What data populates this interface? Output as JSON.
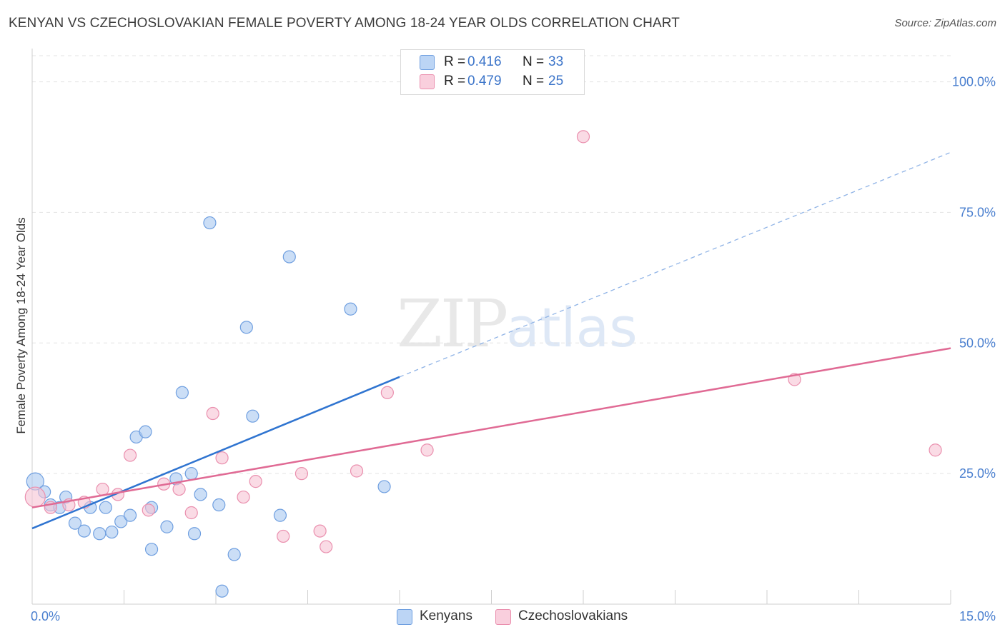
{
  "header": {
    "title": "KENYAN VS CZECHOSLOVAKIAN FEMALE POVERTY AMONG 18-24 YEAR OLDS CORRELATION CHART",
    "source": "Source: ZipAtlas.com"
  },
  "watermark": {
    "zip": "ZIP",
    "atlas": "atlas"
  },
  "legend": {
    "rows": [
      {
        "r_label": "R = ",
        "r_value": "0.416",
        "n_label": "N = ",
        "n_value": "33"
      },
      {
        "r_label": "R = ",
        "r_value": "0.479",
        "n_label": "N = ",
        "n_value": "25"
      }
    ]
  },
  "chart_data": {
    "type": "scatter",
    "title": "KENYAN VS CZECHOSLOVAKIAN FEMALE POVERTY AMONG 18-24 YEAR OLDS CORRELATION CHART",
    "xlabel": "",
    "ylabel": "Female Poverty Among 18-24 Year Olds",
    "xlim": [
      0,
      15
    ],
    "ylim": [
      0,
      105
    ],
    "x_tick_labels": [
      "0.0%",
      "15.0%"
    ],
    "y_tick_labels": [
      "25.0%",
      "50.0%",
      "75.0%",
      "100.0%"
    ],
    "y_ticks": [
      25,
      50,
      75,
      100
    ],
    "grid": true,
    "legend_position": "top-center",
    "series": [
      {
        "name": "Kenyans",
        "color": "#a9c8f0",
        "edge": "#6f9fe0",
        "line_color": "#2f74d0",
        "points": [
          [
            0.05,
            23.5
          ],
          [
            0.2,
            21.5
          ],
          [
            0.3,
            19
          ],
          [
            0.45,
            18.5
          ],
          [
            0.55,
            20.5
          ],
          [
            0.7,
            15.5
          ],
          [
            0.85,
            14
          ],
          [
            0.95,
            18.5
          ],
          [
            1.1,
            13.5
          ],
          [
            1.2,
            18.5
          ],
          [
            1.3,
            13.8
          ],
          [
            1.45,
            15.8
          ],
          [
            1.6,
            17
          ],
          [
            1.7,
            32
          ],
          [
            1.85,
            33
          ],
          [
            1.95,
            18.5
          ],
          [
            1.95,
            10.5
          ],
          [
            2.2,
            14.8
          ],
          [
            2.35,
            24
          ],
          [
            2.45,
            40.5
          ],
          [
            2.6,
            25
          ],
          [
            2.65,
            13.5
          ],
          [
            2.75,
            21
          ],
          [
            2.9,
            73
          ],
          [
            3.05,
            19
          ],
          [
            3.1,
            2.5
          ],
          [
            3.3,
            9.5
          ],
          [
            3.5,
            53
          ],
          [
            3.6,
            36
          ],
          [
            4.05,
            17
          ],
          [
            4.2,
            66.5
          ],
          [
            5.2,
            56.5
          ],
          [
            5.75,
            22.5
          ]
        ],
        "trend": {
          "x0": 0,
          "y0": 14.5,
          "x1": 6.0,
          "y1": 43.5,
          "x_dash_end": 15,
          "y_dash_end": 86.5
        }
      },
      {
        "name": "Czechoslovakians",
        "color": "#f7c3d4",
        "edge": "#ea8fae",
        "line_color": "#e06a94",
        "points": [
          [
            0.05,
            20.5
          ],
          [
            0.3,
            18.5
          ],
          [
            0.6,
            19
          ],
          [
            0.85,
            19.5
          ],
          [
            1.15,
            22
          ],
          [
            1.4,
            21
          ],
          [
            1.6,
            28.5
          ],
          [
            1.9,
            18
          ],
          [
            2.15,
            23
          ],
          [
            2.4,
            22
          ],
          [
            2.6,
            17.5
          ],
          [
            2.95,
            36.5
          ],
          [
            3.1,
            28
          ],
          [
            3.45,
            20.5
          ],
          [
            3.65,
            23.5
          ],
          [
            4.1,
            13
          ],
          [
            4.4,
            25
          ],
          [
            4.7,
            14
          ],
          [
            4.8,
            11
          ],
          [
            5.3,
            25.5
          ],
          [
            5.8,
            40.5
          ],
          [
            6.45,
            29.5
          ],
          [
            9.0,
            89.5
          ],
          [
            12.45,
            43
          ],
          [
            14.75,
            29.5
          ]
        ],
        "trend": {
          "x0": 0,
          "y0": 18.5,
          "x1": 15,
          "y1": 49
        }
      }
    ]
  }
}
